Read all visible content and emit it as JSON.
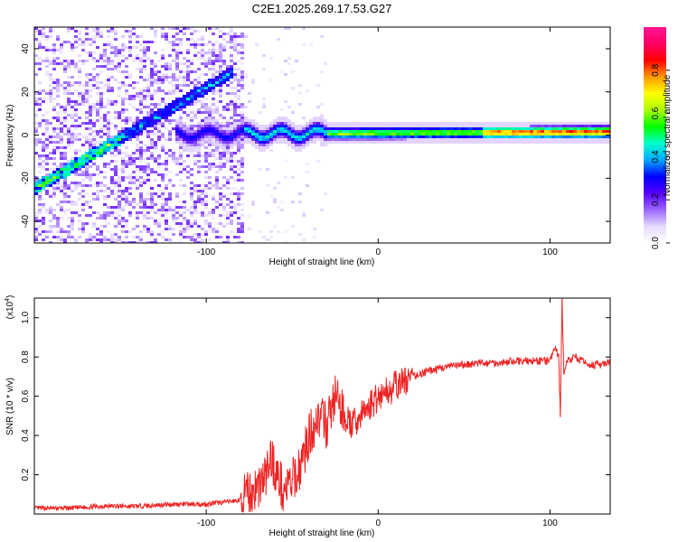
{
  "title": "C2E1.2025.269.17.53.G27",
  "chart_data": [
    {
      "type": "heatmap",
      "title": "C2E1.2025.269.17.53.G27",
      "xlabel": "Height of straight line (km)",
      "ylabel": "Frequency (Hz)",
      "xlim": [
        -200,
        135
      ],
      "ylim": [
        -50,
        50
      ],
      "xticks": [
        -100,
        0,
        100
      ],
      "xtick_labels": [
        "-100",
        "0",
        "100"
      ],
      "yticks": [
        -40,
        -20,
        0,
        20,
        40
      ],
      "ytick_labels": [
        "-40",
        "-20",
        "0",
        "20",
        "40"
      ],
      "colorbar": {
        "label": "Normalized spectral amplitude",
        "range": [
          0,
          1
        ],
        "ticks": [
          0.0,
          0.2,
          0.4,
          0.6,
          0.8
        ],
        "tick_labels": [
          "0.0",
          "0.2",
          "0.4",
          "0.6",
          "0.8"
        ],
        "colors": [
          "#ffffff",
          "#e6d9ff",
          "#9a66ff",
          "#5500ff",
          "#0000ff",
          "#00aaff",
          "#00ffcc",
          "#00ff00",
          "#aaff00",
          "#ffff00",
          "#ff9900",
          "#ff0000",
          "#ff0066",
          "#ff1493"
        ]
      },
      "ridge_line": {
        "x": [
          -200,
          -180,
          -160,
          -140,
          -120,
          -100,
          -80,
          -60,
          -40,
          -20,
          0,
          20,
          40,
          60,
          80,
          100,
          105,
          110,
          135
        ],
        "y": [
          -24,
          -15,
          -5,
          5,
          13,
          22,
          2,
          0,
          -3,
          0,
          0,
          1,
          1,
          1,
          2,
          2,
          0,
          2,
          2
        ]
      },
      "ridge_segments": [
        {
          "name": "rising",
          "x": [
            -200,
            -85
          ],
          "y": [
            -24,
            30
          ]
        },
        {
          "name": "flat",
          "x": [
            -120,
            135
          ],
          "y": [
            1,
            2
          ]
        }
      ]
    },
    {
      "type": "line",
      "xlabel": "Height of straight line (km)",
      "ylabel": "SNR (10 * v/v)",
      "yexponent_label": "(x10",
      "yexponent": "4",
      "xlim": [
        -200,
        135
      ],
      "ylim": [
        0,
        1.1
      ],
      "xticks": [
        -100,
        0,
        100
      ],
      "xtick_labels": [
        "-100",
        "0",
        "100"
      ],
      "yticks": [
        0.2,
        0.4,
        0.6,
        0.8,
        1.0
      ],
      "ytick_labels": [
        "0.2",
        "0.4",
        "0.6",
        "0.8",
        "1.0"
      ],
      "series": [
        {
          "name": "SNR",
          "color": "#ee2222",
          "x": [
            -200,
            -180,
            -160,
            -140,
            -120,
            -100,
            -90,
            -80,
            -75,
            -70,
            -65,
            -62,
            -60,
            -55,
            -50,
            -45,
            -40,
            -35,
            -30,
            -25,
            -20,
            -15,
            -10,
            -5,
            0,
            10,
            20,
            30,
            40,
            50,
            60,
            70,
            80,
            90,
            100,
            103,
            105,
            106,
            107,
            108,
            110,
            115,
            120,
            125,
            130,
            135
          ],
          "y": [
            0.03,
            0.03,
            0.04,
            0.04,
            0.05,
            0.05,
            0.06,
            0.07,
            0.1,
            0.14,
            0.2,
            0.3,
            0.22,
            0.12,
            0.16,
            0.25,
            0.4,
            0.5,
            0.45,
            0.6,
            0.5,
            0.45,
            0.5,
            0.55,
            0.6,
            0.65,
            0.7,
            0.73,
            0.75,
            0.76,
            0.77,
            0.77,
            0.78,
            0.78,
            0.78,
            0.85,
            0.8,
            0.5,
            1.1,
            0.72,
            0.78,
            0.8,
            0.77,
            0.76,
            0.76,
            0.77
          ]
        }
      ]
    }
  ]
}
